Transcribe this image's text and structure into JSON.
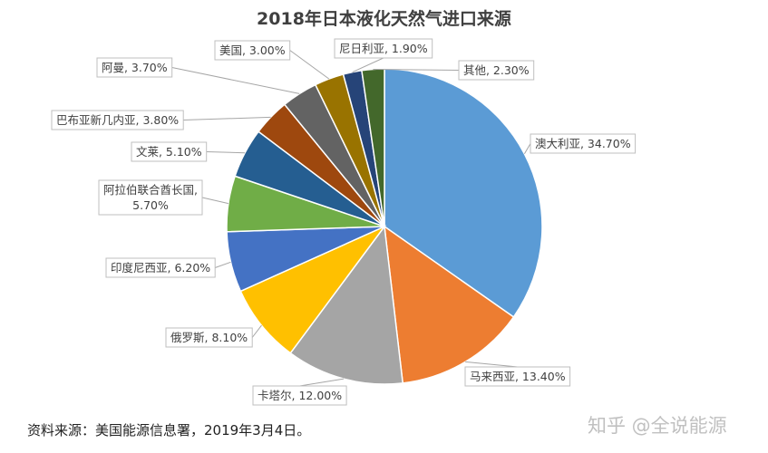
{
  "chart_data": {
    "type": "pie",
    "title": "2018年日本液化天然气进口来源",
    "slices": [
      {
        "label": "澳大利亚",
        "value": 34.7,
        "display": "澳大利亚, 34.70%",
        "color": "#5b9bd5"
      },
      {
        "label": "马来西亚",
        "value": 13.4,
        "display": "马来西亚, 13.40%",
        "color": "#ed7d31"
      },
      {
        "label": "卡塔尔",
        "value": 12.0,
        "display": "卡塔尔, 12.00%",
        "color": "#a5a5a5"
      },
      {
        "label": "俄罗斯",
        "value": 8.1,
        "display": "俄罗斯, 8.10%",
        "color": "#ffc000"
      },
      {
        "label": "印度尼西亚",
        "value": 6.2,
        "display": "印度尼西亚, 6.20%",
        "color": "#4472c4"
      },
      {
        "label": "阿拉伯联合酋长国",
        "value": 5.7,
        "display": "阿拉伯联合酋长国, 5.70%",
        "color": "#70ad47"
      },
      {
        "label": "文莱",
        "value": 5.1,
        "display": "文莱, 5.10%",
        "color": "#255e91"
      },
      {
        "label": "巴布亚新几内亚",
        "value": 3.8,
        "display": "巴布亚新几内亚, 3.80%",
        "color": "#9e480e"
      },
      {
        "label": "阿曼",
        "value": 3.7,
        "display": "阿曼, 3.70%",
        "color": "#636363"
      },
      {
        "label": "美国",
        "value": 3.0,
        "display": "美国, 3.00%",
        "color": "#997300"
      },
      {
        "label": "尼日利亚",
        "value": 1.9,
        "display": "尼日利亚, 1.90%",
        "color": "#264478"
      },
      {
        "label": "其他",
        "value": 2.3,
        "display": "其他, 2.30%",
        "color": "#43682b"
      }
    ]
  },
  "source": "资料来源：美国能源信息署，2019年3月4日。",
  "watermark": "知乎 @全说能源"
}
